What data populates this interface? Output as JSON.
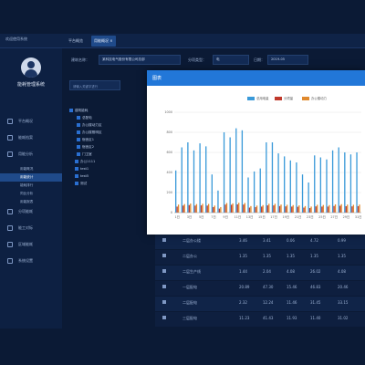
{
  "topbar": {
    "brand": "欢迎使用系统",
    "tabs": [
      {
        "label": "平台概览",
        "active": false
      },
      {
        "label": "用能概况 ×",
        "active": true
      }
    ]
  },
  "sidebar": {
    "system_name": "能耗管理系统",
    "items": [
      {
        "label": "平台概况",
        "sub": false,
        "active": false
      },
      {
        "label": "能耗档案",
        "sub": false,
        "active": false
      },
      {
        "label": "用能分析",
        "sub": false,
        "active": false
      },
      {
        "label": "用能概况",
        "sub": true,
        "active": false
      },
      {
        "label": "用能统计",
        "sub": true,
        "active": true
      },
      {
        "label": "能耗排行",
        "sub": true,
        "active": false
      },
      {
        "label": "同比分析",
        "sub": true,
        "active": false
      },
      {
        "label": "用能报表",
        "sub": true,
        "active": false
      },
      {
        "label": "分项能耗",
        "sub": false,
        "active": false
      },
      {
        "label": "能工对标",
        "sub": false,
        "active": false
      },
      {
        "label": "区域能耗",
        "sub": false,
        "active": false
      },
      {
        "label": "系统设置",
        "sub": false,
        "active": false
      }
    ]
  },
  "filters": {
    "company_label": "建筑名称：",
    "company_value": "某科技电气股份有限公司总部",
    "type_label": "分项类型：",
    "type_value": "电",
    "date_label": "日期：",
    "date_value": "2019-05"
  },
  "tree": {
    "search_placeholder": "请输入关键字进行",
    "nodes": [
      "建筑能耗",
      "总配电",
      "办公楼动力区",
      "办公楼照明区",
      "宿舍区1",
      "宿舍区2",
      "门卫室",
      "办公1111",
      "test1",
      "test5",
      "测试"
    ]
  },
  "table": {
    "rows": [
      [
        "二层办公楼",
        "3.46",
        "3.41",
        "0.06",
        "4.72",
        "0.99"
      ],
      [
        "二层办公",
        "1.35",
        "1.35",
        "1.35",
        "1.35",
        "1.35"
      ],
      [
        "二层生产线",
        "1.44",
        "2.04",
        "4.08",
        "26.02",
        "4.08"
      ],
      [
        "一层配电",
        "20.89",
        "47.30",
        "15.46",
        "46.83",
        "20.46"
      ],
      [
        "二层配电",
        "2.32",
        "12.24",
        "11.46",
        "31.45",
        "33.15"
      ],
      [
        "三层配电",
        "11.23",
        "41.43",
        "11.93",
        "11.40",
        "31.02"
      ]
    ]
  },
  "modal": {
    "title": "图表"
  },
  "colors": {
    "bg": "#0b1a35",
    "series_main": "#3a9ad9",
    "series_red": "#c0392b",
    "series_orange": "#e08a2e",
    "modal_header": "#2277d8"
  },
  "chart_data": {
    "type": "bar",
    "categories": [
      "1日",
      "2日",
      "3日",
      "4日",
      "5日",
      "6日",
      "7日",
      "8日",
      "9日",
      "10日",
      "11日",
      "12日",
      "13日",
      "14日",
      "15日",
      "16日",
      "17日",
      "18日",
      "19日",
      "20日",
      "21日",
      "22日",
      "23日",
      "24日",
      "25日",
      "26日",
      "27日",
      "28日",
      "29日",
      "30日",
      "31日"
    ],
    "series": [
      {
        "name": "总用电量",
        "values": [
          420,
          650,
          700,
          620,
          690,
          660,
          380,
          220,
          800,
          750,
          840,
          820,
          350,
          410,
          440,
          700,
          700,
          590,
          560,
          520,
          500,
          380,
          300,
          570,
          550,
          530,
          620,
          650,
          600,
          580,
          600
        ]
      },
      {
        "name": "分项量",
        "values": [
          60,
          70,
          75,
          70,
          72,
          70,
          55,
          40,
          80,
          78,
          82,
          80,
          50,
          55,
          60,
          72,
          72,
          65,
          62,
          60,
          58,
          50,
          45,
          62,
          60,
          60,
          66,
          68,
          64,
          62,
          64
        ]
      },
      {
        "name": "办公楼动力",
        "values": [
          80,
          85,
          90,
          85,
          88,
          86,
          70,
          55,
          95,
          92,
          98,
          96,
          65,
          70,
          75,
          88,
          88,
          80,
          78,
          75,
          72,
          65,
          60,
          78,
          76,
          75,
          82,
          84,
          80,
          78,
          80
        ]
      }
    ],
    "yticks": [
      0,
      200,
      400,
      600,
      800,
      1000
    ],
    "ylim": [
      0,
      1000
    ],
    "legend_position": "top"
  }
}
